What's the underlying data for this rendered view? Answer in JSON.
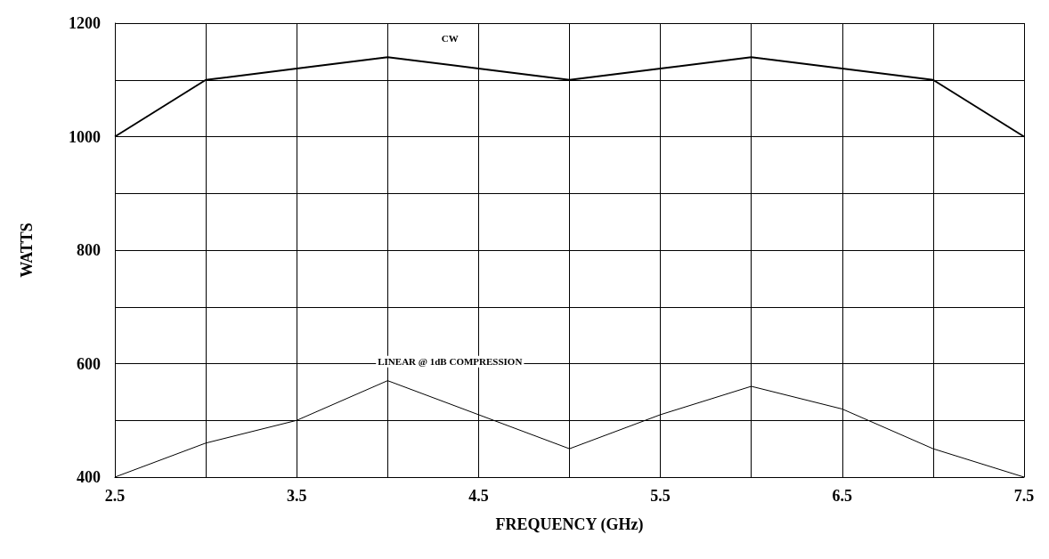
{
  "chart_data": {
    "type": "line",
    "xlabel": "FREQUENCY (GHz)",
    "ylabel": "WATTS",
    "x": [
      2.5,
      3,
      3.5,
      4,
      4.5,
      5,
      5.5,
      6,
      6.5,
      7,
      7.5
    ],
    "series": [
      {
        "name": "CW",
        "color": "#000000",
        "values": [
          1000,
          1100,
          1120,
          1140,
          1120,
          1100,
          1120,
          1140,
          1120,
          1100,
          1000
        ]
      },
      {
        "name": "LINEAR @ 1dB COMPRESSION",
        "color": "#000000",
        "values": [
          400,
          460,
          500,
          570,
          510,
          450,
          510,
          560,
          520,
          450,
          400
        ]
      }
    ],
    "xlim": [
      2.5,
      7.5
    ],
    "xticks": [
      2.5,
      {
        "value": 3,
        "label": null
      },
      3.5,
      {
        "value": 4,
        "label": null
      },
      4.5,
      {
        "value": 5,
        "label": null
      },
      5.5,
      {
        "value": 6,
        "label": null
      },
      6.5,
      {
        "value": 7,
        "label": null
      },
      7.5
    ],
    "ylim": [
      400,
      1200
    ],
    "yticks": [
      400,
      {
        "value": 500,
        "label": null
      },
      600,
      {
        "value": 700,
        "label": null
      },
      800,
      {
        "value": 900,
        "label": null
      },
      1000,
      {
        "value": 1100,
        "label": null
      },
      1200
    ],
    "grid": true,
    "legend": false,
    "marker": "none",
    "line_style": "solid"
  }
}
